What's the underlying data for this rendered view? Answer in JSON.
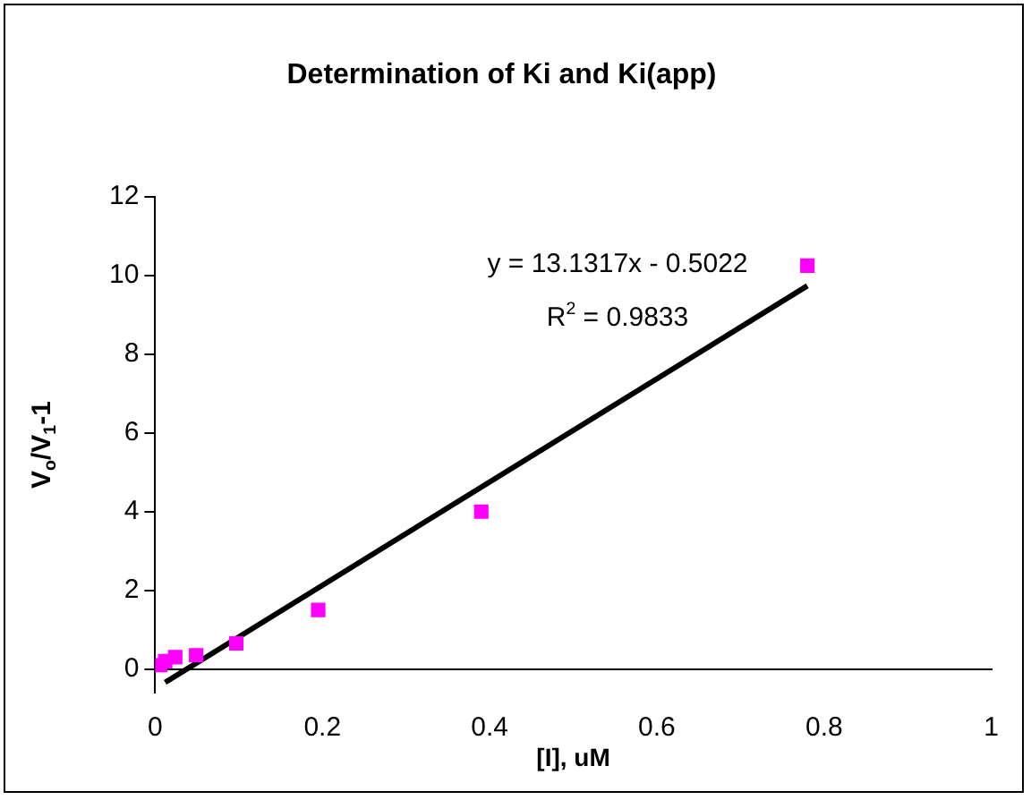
{
  "chart_data": {
    "type": "scatter",
    "title": "Determination of Ki and Ki(app)",
    "xlabel": "[I], uM",
    "ylabel": "V$_{o}$/V$_{1}$-1",
    "xlim": [
      0,
      1
    ],
    "xticks": [
      0,
      0.2,
      0.4,
      0.6,
      0.8,
      1
    ],
    "ylim": [
      -0.6,
      12
    ],
    "yticks": [
      0,
      2,
      4,
      6,
      8,
      10,
      12
    ],
    "grid": false,
    "legend": false,
    "series": [
      {
        "color": "#ff00ff",
        "marker": "square",
        "x": [
          0.006,
          0.012,
          0.024,
          0.049,
          0.097,
          0.195,
          0.39,
          0.78
        ],
        "values": [
          0.1,
          0.2,
          0.3,
          0.35,
          0.65,
          1.5,
          4.0,
          10.25
        ]
      },
      {
        "type": "line",
        "color": "#000000",
        "x": [
          0.012,
          0.78
        ],
        "values": [
          -0.34,
          9.74
        ]
      }
    ],
    "annotations": [
      "y = 13.1317x - 0.5022",
      "R$^{2}$ = 0.9833"
    ]
  }
}
